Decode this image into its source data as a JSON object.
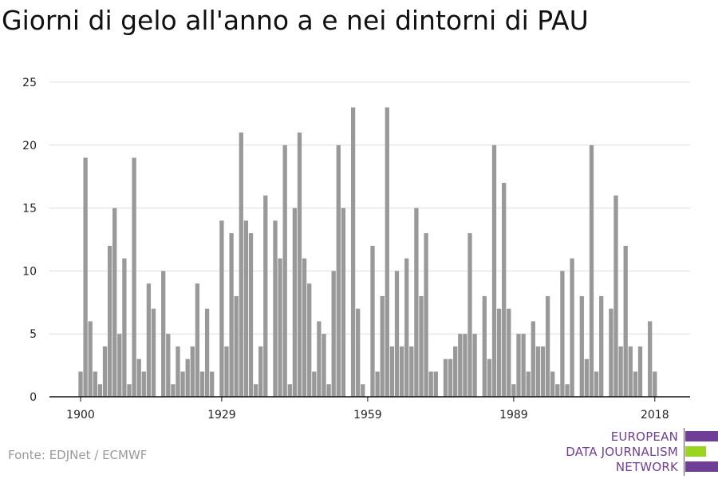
{
  "title": "Giorni di gelo all'anno a e nei dintorni di PAU",
  "source": "Fonte: EDJNet / ECMWF",
  "logo": {
    "lines": [
      "EUROPEAN",
      "DATA JOURNALISM",
      "NETWORK"
    ],
    "colors": {
      "purple": "#6f3f98",
      "green": "#9ad320"
    }
  },
  "chart_data": {
    "type": "bar",
    "title": "Giorni di gelo all'anno a e nei dintorni di PAU",
    "xlabel": "",
    "ylabel": "",
    "x_start": 1900,
    "x_end": 2018,
    "xticks": [
      1900,
      1929,
      1959,
      1989,
      2018
    ],
    "yticks": [
      0,
      5,
      10,
      15,
      20,
      25
    ],
    "ylim": [
      0,
      25
    ],
    "bar_color": "#999999",
    "grid": true,
    "values": [
      2,
      19,
      6,
      2,
      1,
      4,
      12,
      15,
      5,
      11,
      1,
      19,
      3,
      2,
      9,
      7,
      0,
      10,
      5,
      1,
      4,
      2,
      3,
      4,
      9,
      2,
      7,
      2,
      0,
      14,
      4,
      13,
      8,
      21,
      14,
      13,
      1,
      4,
      16,
      0,
      14,
      11,
      20,
      1,
      15,
      21,
      11,
      9,
      2,
      6,
      5,
      1,
      10,
      20,
      15,
      0,
      23,
      7,
      1,
      0,
      12,
      2,
      8,
      23,
      4,
      10,
      4,
      11,
      4,
      15,
      8,
      13,
      2,
      2,
      0,
      3,
      3,
      4,
      5,
      5,
      13,
      5,
      0,
      8,
      3,
      20,
      7,
      17,
      7,
      1,
      5,
      5,
      2,
      6,
      4,
      4,
      8,
      2,
      1,
      10,
      1,
      11,
      0,
      8,
      3,
      20,
      2,
      8,
      0,
      7,
      16,
      4,
      12,
      4,
      2,
      4,
      0,
      6,
      2
    ]
  }
}
